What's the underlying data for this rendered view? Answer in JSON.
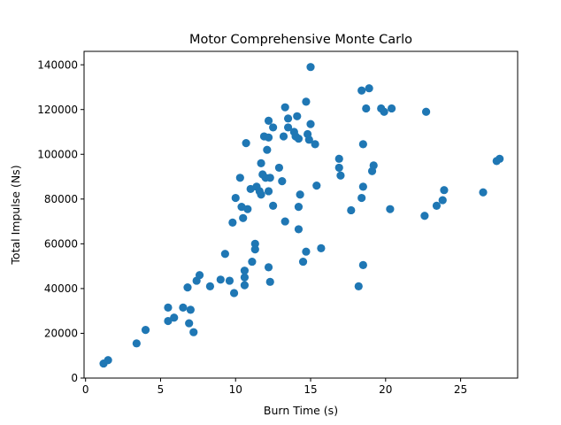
{
  "chart_data": {
    "type": "scatter",
    "title": "Motor Comprehensive Monte Carlo",
    "xlabel": "Burn Time (s)",
    "ylabel": "Total Impulse (Ns)",
    "xlim": [
      -0.1,
      28.8
    ],
    "ylim": [
      0,
      146000
    ],
    "xticks": [
      0,
      5,
      10,
      15,
      20,
      25
    ],
    "yticks": [
      0,
      20000,
      40000,
      60000,
      80000,
      100000,
      120000,
      140000
    ],
    "xtick_labels": [
      "0",
      "5",
      "10",
      "15",
      "20",
      "25"
    ],
    "ytick_labels": [
      "0",
      "20000",
      "40000",
      "60000",
      "80000",
      "100000",
      "120000",
      "140000"
    ],
    "grid": false,
    "marker_color": "#1f77b4",
    "points": [
      [
        1.2,
        6500
      ],
      [
        1.5,
        8000
      ],
      [
        3.4,
        15500
      ],
      [
        4.0,
        21500
      ],
      [
        5.5,
        25500
      ],
      [
        5.5,
        31500
      ],
      [
        5.9,
        27000
      ],
      [
        6.5,
        31500
      ],
      [
        6.8,
        40500
      ],
      [
        6.9,
        24500
      ],
      [
        7.0,
        30500
      ],
      [
        7.2,
        20500
      ],
      [
        7.4,
        43500
      ],
      [
        7.6,
        46000
      ],
      [
        8.3,
        41000
      ],
      [
        9.0,
        44000
      ],
      [
        9.3,
        55500
      ],
      [
        9.6,
        43500
      ],
      [
        9.8,
        69500
      ],
      [
        9.9,
        38000
      ],
      [
        10.0,
        80500
      ],
      [
        10.3,
        89500
      ],
      [
        10.4,
        76500
      ],
      [
        10.5,
        71500
      ],
      [
        10.6,
        45000
      ],
      [
        10.6,
        41500
      ],
      [
        10.6,
        48000
      ],
      [
        10.7,
        105000
      ],
      [
        10.8,
        75500
      ],
      [
        11.0,
        84500
      ],
      [
        11.1,
        52000
      ],
      [
        11.3,
        60000
      ],
      [
        11.3,
        57500
      ],
      [
        11.4,
        85500
      ],
      [
        11.6,
        83500
      ],
      [
        11.7,
        96000
      ],
      [
        11.7,
        82000
      ],
      [
        11.8,
        91000
      ],
      [
        11.9,
        108000
      ],
      [
        12.0,
        89500
      ],
      [
        12.1,
        102000
      ],
      [
        12.2,
        107500
      ],
      [
        12.2,
        115000
      ],
      [
        12.2,
        83500
      ],
      [
        12.2,
        49500
      ],
      [
        12.3,
        43000
      ],
      [
        12.3,
        89500
      ],
      [
        12.5,
        112000
      ],
      [
        12.5,
        77000
      ],
      [
        12.9,
        94000
      ],
      [
        13.1,
        88000
      ],
      [
        13.2,
        108000
      ],
      [
        13.3,
        70000
      ],
      [
        13.3,
        121000
      ],
      [
        13.5,
        116000
      ],
      [
        13.5,
        112000
      ],
      [
        13.9,
        110000
      ],
      [
        14.0,
        108000
      ],
      [
        14.1,
        117000
      ],
      [
        14.2,
        107000
      ],
      [
        14.2,
        76500
      ],
      [
        14.2,
        66500
      ],
      [
        14.3,
        82000
      ],
      [
        14.5,
        52000
      ],
      [
        14.7,
        123500
      ],
      [
        14.7,
        56500
      ],
      [
        14.8,
        109000
      ],
      [
        14.9,
        106500
      ],
      [
        15.0,
        113500
      ],
      [
        15.0,
        139000
      ],
      [
        15.3,
        104500
      ],
      [
        15.4,
        86000
      ],
      [
        15.7,
        58000
      ],
      [
        16.9,
        98000
      ],
      [
        16.9,
        94000
      ],
      [
        17.0,
        90500
      ],
      [
        17.7,
        75000
      ],
      [
        18.2,
        41000
      ],
      [
        18.4,
        80500
      ],
      [
        18.4,
        128500
      ],
      [
        18.5,
        104500
      ],
      [
        18.5,
        50500
      ],
      [
        18.5,
        85500
      ],
      [
        18.7,
        120500
      ],
      [
        18.9,
        129500
      ],
      [
        19.1,
        92500
      ],
      [
        19.2,
        95000
      ],
      [
        19.7,
        120500
      ],
      [
        19.9,
        119000
      ],
      [
        20.3,
        75500
      ],
      [
        20.4,
        120500
      ],
      [
        22.6,
        72500
      ],
      [
        22.7,
        119000
      ],
      [
        23.4,
        77000
      ],
      [
        23.8,
        79500
      ],
      [
        23.9,
        84000
      ],
      [
        26.5,
        83000
      ],
      [
        27.4,
        97000
      ],
      [
        27.6,
        98000
      ]
    ]
  }
}
